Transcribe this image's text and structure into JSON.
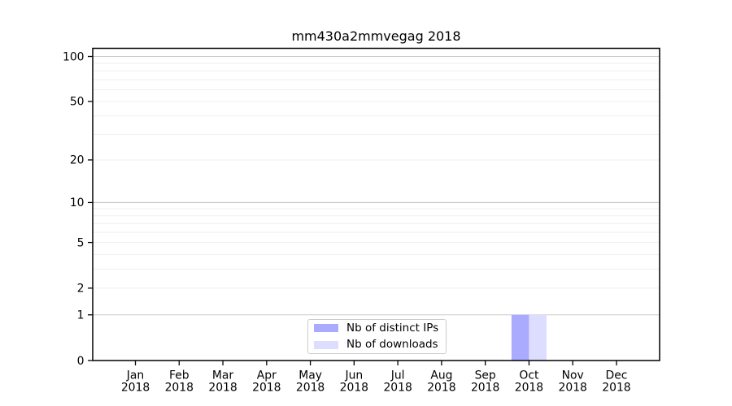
{
  "title": "mm430a2mmvegag 2018",
  "chart_data": {
    "type": "bar",
    "title": "mm430a2mmvegag 2018",
    "categories": [
      "Jan",
      "Feb",
      "Mar",
      "Apr",
      "May",
      "Jun",
      "Jul",
      "Aug",
      "Sep",
      "Oct",
      "Nov",
      "Dec"
    ],
    "category_year": "2018",
    "series": [
      {
        "name": "Nb of distinct IPs",
        "color": "#aaaaff",
        "values": [
          0,
          0,
          0,
          0,
          0,
          0,
          0,
          0,
          0,
          1,
          0,
          0
        ]
      },
      {
        "name": "Nb of downloads",
        "color": "#ddddff",
        "values": [
          0,
          0,
          0,
          0,
          0,
          0,
          0,
          0,
          0,
          1,
          0,
          0
        ]
      }
    ],
    "yscale": "log1p",
    "ylim": [
      0,
      100
    ],
    "y_major_ticks": [
      0,
      1,
      2,
      5,
      10,
      20,
      50,
      100
    ],
    "y_decade_gridlines": [
      1,
      10,
      100
    ],
    "y_minor_gridlines": [
      2,
      3,
      4,
      5,
      6,
      7,
      8,
      9,
      20,
      30,
      40,
      50,
      60,
      70,
      80,
      90
    ],
    "grid": true,
    "legend_position": "lower center",
    "colors": {
      "bar_ips": "#aaaaff",
      "bar_downloads": "#ddddff",
      "gridline_decade": "#c9c9c9",
      "gridline_minor": "#efefef",
      "spine": "#000000",
      "text": "#000000",
      "legend_border": "#cccccc"
    }
  }
}
